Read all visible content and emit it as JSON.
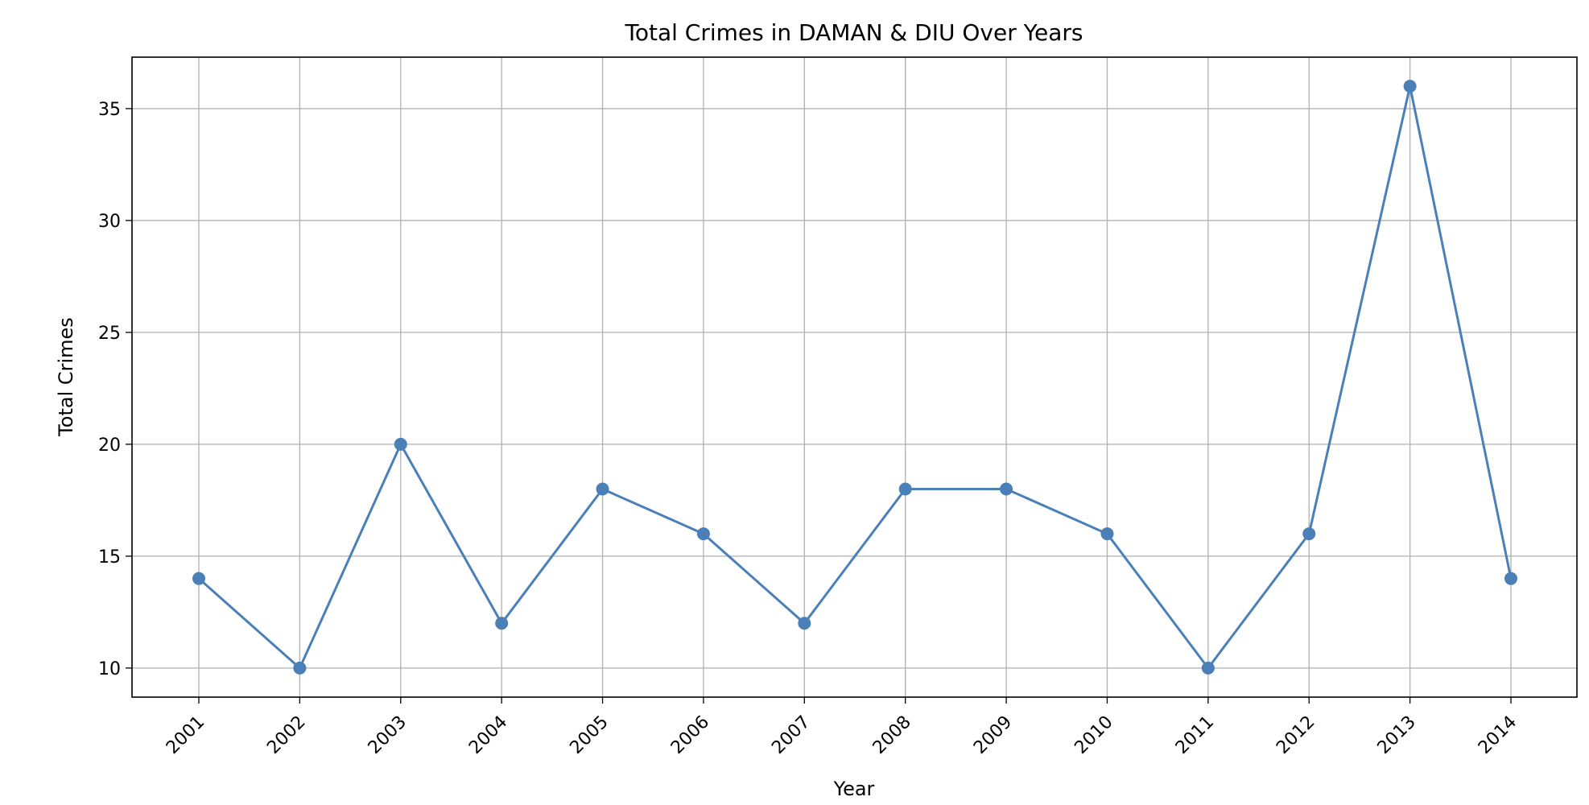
{
  "chart_data": {
    "type": "line",
    "title": "Total Crimes in DAMAN & DIU Over Years",
    "xlabel": "Year",
    "ylabel": "Total Crimes",
    "categories": [
      "2001",
      "2002",
      "2003",
      "2004",
      "2005",
      "2006",
      "2007",
      "2008",
      "2009",
      "2010",
      "2011",
      "2012",
      "2013",
      "2014"
    ],
    "series": [
      {
        "values": [
          14,
          10,
          20,
          12,
          18,
          16,
          12,
          18,
          18,
          16,
          10,
          16,
          36,
          14
        ],
        "color": "#4a7fb8",
        "marker": "circle"
      }
    ],
    "ylim": [
      8.7,
      37.3
    ],
    "yticks": [
      10,
      15,
      20,
      25,
      30,
      35
    ],
    "grid": true,
    "x_tick_rotation": -45
  }
}
